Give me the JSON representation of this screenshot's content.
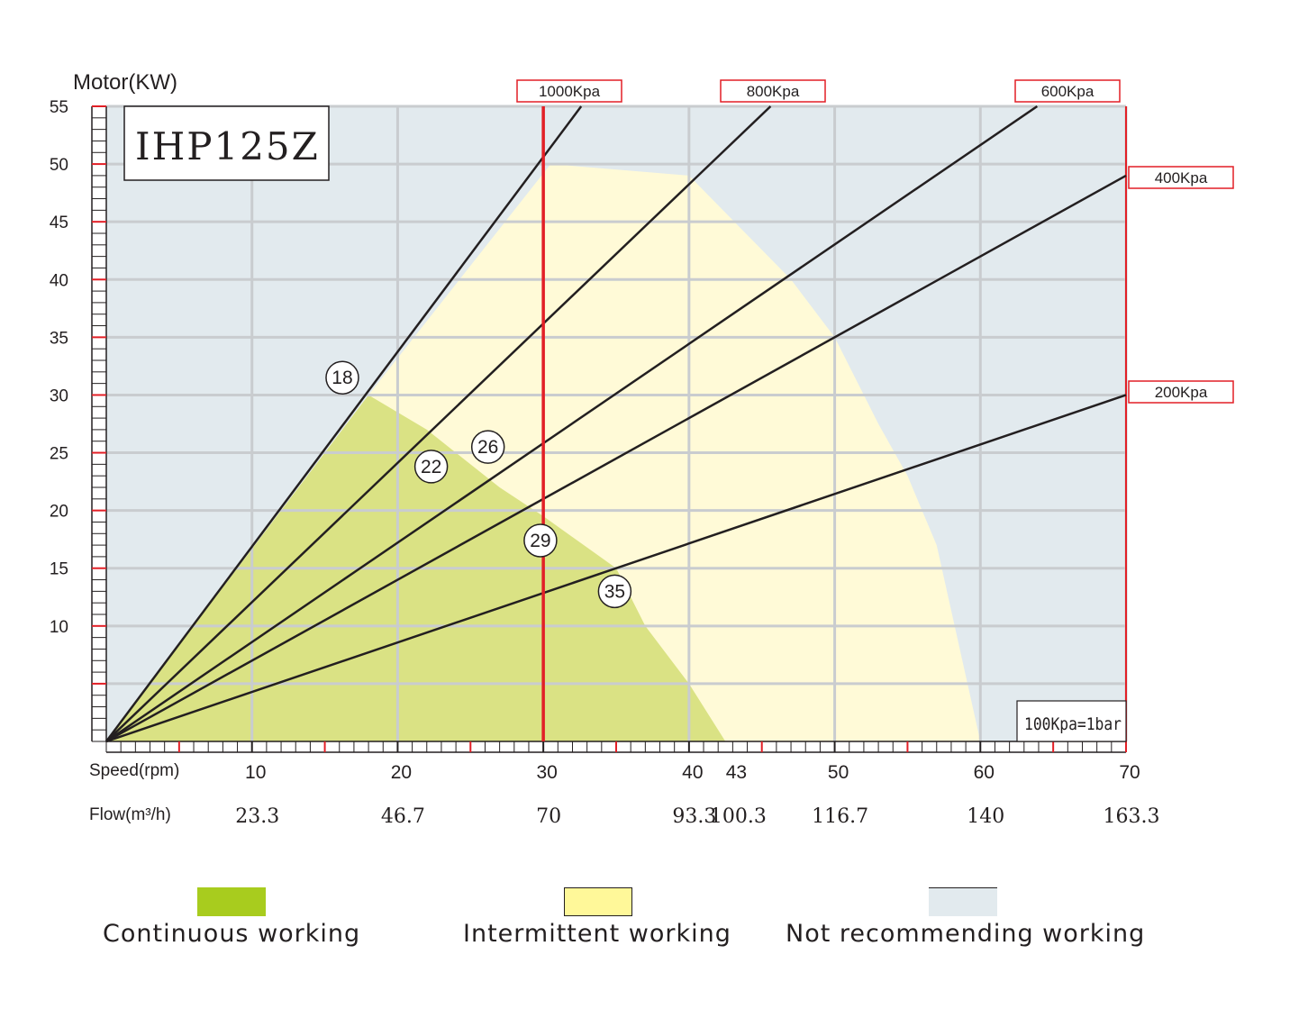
{
  "chart_data": {
    "type": "line",
    "title": "IHP125Z",
    "ylabel": "Motor(KW)",
    "xlabel_speed": "Speed(rpm)",
    "xlabel_flow": "Flow(m³/h)",
    "note": "100Kpa=1bar",
    "xlim": [
      0,
      70
    ],
    "ylim": [
      0,
      55
    ],
    "y_ticks": [
      10,
      15,
      20,
      25,
      30,
      35,
      40,
      45,
      50,
      55
    ],
    "x_ticks": [
      10,
      20,
      30,
      40,
      43,
      50,
      60,
      70
    ],
    "flow_ticks": [
      {
        "speed": 10,
        "label": "23.3"
      },
      {
        "speed": 20,
        "label": "46.7"
      },
      {
        "speed": 30,
        "label": "70"
      },
      {
        "speed": 40,
        "label": "93.3"
      },
      {
        "speed": 43,
        "label": "100.3"
      },
      {
        "speed": 50,
        "label": "116.7"
      },
      {
        "speed": 60,
        "label": "140"
      },
      {
        "speed": 70,
        "label": "163.3"
      }
    ],
    "series": [
      {
        "name": "1000Kpa",
        "x": [
          0,
          32.6
        ],
        "y": [
          0,
          55
        ]
      },
      {
        "name": "800Kpa",
        "x": [
          0,
          45.6
        ],
        "y": [
          0,
          55
        ]
      },
      {
        "name": "600Kpa",
        "x": [
          0,
          63.9
        ],
        "y": [
          0,
          55
        ]
      },
      {
        "name": "400Kpa",
        "x": [
          0,
          70
        ],
        "y": [
          0,
          49
        ]
      },
      {
        "name": "200Kpa",
        "x": [
          0,
          70
        ],
        "y": [
          0,
          30
        ]
      }
    ],
    "speed_limit": {
      "x": 30,
      "label": "1000Kpa"
    },
    "zones": {
      "continuous": [
        [
          0,
          0
        ],
        [
          18,
          30
        ],
        [
          22,
          27
        ],
        [
          27,
          22
        ],
        [
          30,
          19.5
        ],
        [
          35,
          15
        ],
        [
          37,
          10
        ],
        [
          40,
          5
        ],
        [
          42.5,
          0
        ]
      ],
      "intermittent": [
        [
          0,
          0
        ],
        [
          18,
          30
        ],
        [
          30.5,
          50
        ],
        [
          40,
          49
        ],
        [
          47,
          40
        ],
        [
          50,
          35
        ],
        [
          53,
          27.5
        ],
        [
          55,
          23
        ],
        [
          57,
          17
        ],
        [
          60,
          0
        ]
      ]
    },
    "markers": [
      {
        "label": "18",
        "x": 16.2,
        "y": 31.5
      },
      {
        "label": "22",
        "x": 22.3,
        "y": 23.8
      },
      {
        "label": "26",
        "x": 26.2,
        "y": 25.5
      },
      {
        "label": "29",
        "x": 29.8,
        "y": 17.4
      },
      {
        "label": "35",
        "x": 34.9,
        "y": 13.0
      }
    ],
    "colors": {
      "not_recommended": "#e2eaee",
      "intermittent": "#fffad7",
      "continuous": "#dae284",
      "grid": "#c9cccf",
      "line": "#231f20",
      "red": "#e21f26"
    }
  },
  "legend": {
    "items": [
      {
        "label": "Continuous working",
        "color": "#a8cc1e"
      },
      {
        "label": "Intermittent working",
        "color": "#fff899"
      },
      {
        "label": "Not recommending working",
        "color": "#e2eaee"
      }
    ]
  }
}
